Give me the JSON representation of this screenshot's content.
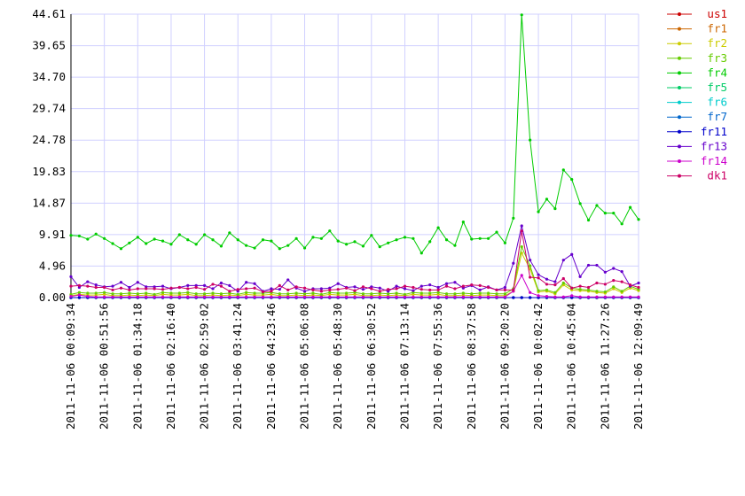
{
  "chart_data": {
    "type": "line",
    "categories": [
      "2011-11-06 00:09:34",
      null,
      null,
      null,
      "2011-11-06 00:51:56",
      null,
      null,
      null,
      "2011-11-06 01:34:18",
      null,
      null,
      null,
      "2011-11-06 02:16:40",
      null,
      null,
      null,
      "2011-11-06 02:59:02",
      null,
      null,
      null,
      "2011-11-06 03:41:24",
      null,
      null,
      null,
      "2011-11-06 04:23:46",
      null,
      null,
      null,
      "2011-11-06 05:06:08",
      null,
      null,
      null,
      "2011-11-06 05:48:30",
      null,
      null,
      null,
      "2011-11-06 06:30:52",
      null,
      null,
      null,
      "2011-11-06 07:13:14",
      null,
      null,
      null,
      "2011-11-06 07:55:36",
      null,
      null,
      null,
      "2011-11-06 08:37:58",
      null,
      null,
      null,
      "2011-11-06 09:20:20",
      null,
      null,
      null,
      "2011-11-06 10:02:42",
      null,
      null,
      null,
      "2011-11-06 10:45:04",
      null,
      null,
      null,
      "2011-11-06 11:27:26",
      null,
      null,
      null,
      "2011-11-06 12:09:49"
    ],
    "ylim": [
      0,
      44.61
    ],
    "yticks": [
      {
        "value": 0,
        "label": "0.00"
      },
      4.96,
      9.91,
      14.87,
      19.83,
      24.78,
      29.74,
      {
        "value": 34.7,
        "label": "34.70"
      },
      39.65,
      44.61
    ],
    "grid": true,
    "series": [
      {
        "name": "us1",
        "color": "#cc0000",
        "values": [
          0,
          0,
          0,
          0,
          0,
          0,
          0,
          0,
          0,
          0,
          0,
          0,
          0,
          0,
          0,
          0,
          0,
          0,
          0,
          0,
          0,
          0,
          0,
          0,
          0,
          0,
          0,
          0,
          0,
          0,
          0,
          0,
          0,
          0,
          0,
          0,
          0,
          0,
          0,
          0,
          0,
          0,
          0,
          0,
          0,
          0,
          0,
          0,
          0,
          0,
          0,
          0,
          0,
          0,
          0,
          0,
          0,
          0,
          0,
          0,
          0,
          0,
          0,
          0,
          0,
          0,
          0,
          0,
          0
        ]
      },
      {
        "name": "fr1",
        "color": "#cc6600",
        "values": [
          0,
          0,
          0,
          0,
          0,
          0,
          0,
          0,
          0,
          0,
          0,
          0,
          0,
          0,
          0,
          0,
          0,
          0,
          0,
          0,
          0,
          0,
          0,
          0,
          0,
          0,
          0,
          0,
          0,
          0,
          0,
          0,
          0,
          0,
          0,
          0,
          0,
          0,
          0,
          0,
          0,
          0,
          0,
          0,
          0,
          0,
          0,
          0,
          0,
          0,
          0,
          0,
          0,
          0,
          0,
          0,
          0,
          0,
          0,
          0,
          0,
          0,
          0,
          0,
          0,
          0,
          0,
          0,
          0
        ]
      },
      {
        "name": "fr2",
        "color": "#cccc00",
        "values": [
          0.3,
          0.5,
          0.4,
          0.4,
          0.5,
          0.3,
          0.3,
          0.4,
          0.3,
          0.4,
          0.3,
          0.5,
          0.4,
          0.4,
          0.5,
          0.3,
          0.3,
          0.4,
          0.3,
          0.4,
          0.3,
          0.5,
          0.4,
          0.4,
          0.5,
          0.3,
          0.3,
          0.4,
          0.3,
          0.4,
          0.3,
          0.5,
          0.4,
          0.4,
          0.5,
          0.3,
          0.3,
          0.4,
          0.3,
          0.4,
          0.3,
          0.5,
          0.4,
          0.4,
          0.5,
          0.3,
          0.3,
          0.4,
          0.3,
          0.4,
          0.4,
          0.3,
          0.3,
          1.0,
          7.0,
          4.5,
          0.9,
          1.0,
          0.6,
          2.0,
          1.2,
          1.1,
          1.0,
          0.8,
          0.7,
          1.4,
          0.8,
          1.5,
          1.1
        ]
      },
      {
        "name": "fr3",
        "color": "#66cc00",
        "values": [
          0.5,
          0.8,
          0.7,
          0.7,
          0.8,
          0.6,
          0.6,
          0.7,
          0.6,
          0.7,
          0.5,
          0.8,
          0.7,
          0.7,
          0.8,
          0.6,
          0.6,
          0.7,
          0.6,
          0.7,
          0.5,
          0.8,
          0.7,
          0.7,
          0.8,
          0.6,
          0.6,
          0.7,
          0.6,
          0.7,
          0.5,
          0.8,
          0.7,
          0.7,
          0.8,
          0.6,
          0.6,
          0.7,
          0.6,
          0.7,
          0.5,
          0.8,
          0.7,
          0.7,
          0.8,
          0.6,
          0.6,
          0.7,
          0.6,
          0.7,
          0.7,
          0.6,
          0.6,
          1.4,
          8.0,
          5.0,
          1.1,
          1.2,
          0.8,
          2.3,
          1.5,
          1.3,
          1.2,
          1.0,
          0.9,
          1.7,
          1.0,
          1.8,
          1.3
        ]
      },
      {
        "name": "fr4",
        "color": "#00cc00",
        "values": [
          9.8,
          9.7,
          9.2,
          10.0,
          9.3,
          8.5,
          7.7,
          8.6,
          9.5,
          8.5,
          9.2,
          8.9,
          8.4,
          9.9,
          9.1,
          8.4,
          9.9,
          9.1,
          8.1,
          10.2,
          9.1,
          8.2,
          7.8,
          9.1,
          8.9,
          7.7,
          8.2,
          9.3,
          7.8,
          9.5,
          9.3,
          10.5,
          8.9,
          8.4,
          8.8,
          8.1,
          9.8,
          8.0,
          8.6,
          9.1,
          9.5,
          9.3,
          7.0,
          8.8,
          11.0,
          9.1,
          8.2,
          11.9,
          9.2,
          9.3,
          9.3,
          10.3,
          8.6,
          12.5,
          44.5,
          24.8,
          13.5,
          15.5,
          14.0,
          20.1,
          18.6,
          14.8,
          12.2,
          14.5,
          13.3,
          13.3,
          11.6,
          14.2,
          12.3
        ]
      },
      {
        "name": "fr5",
        "color": "#00cc66",
        "values": [
          0,
          0,
          0,
          0,
          0,
          0,
          0,
          0,
          0,
          0,
          0,
          0,
          0,
          0,
          0,
          0,
          0,
          0,
          0,
          0,
          0,
          0,
          0,
          0,
          0,
          0,
          0,
          0,
          0,
          0,
          0,
          0,
          0,
          0,
          0,
          0,
          0,
          0,
          0,
          0,
          0,
          0,
          0,
          0,
          0,
          0,
          0,
          0,
          0,
          0,
          0,
          0,
          0,
          0,
          0,
          0,
          0,
          0,
          0,
          0,
          0,
          0,
          0,
          0,
          0,
          0,
          0,
          0,
          0
        ]
      },
      {
        "name": "fr6",
        "color": "#00cccc",
        "values": [
          0,
          0,
          0,
          0,
          0,
          0,
          0,
          0,
          0,
          0,
          0,
          0,
          0,
          0,
          0,
          0,
          0,
          0,
          0,
          0,
          0,
          0,
          0,
          0,
          0,
          0,
          0,
          0,
          0,
          0,
          0,
          0,
          0,
          0,
          0,
          0,
          0,
          0,
          0,
          0,
          0,
          0,
          0,
          0,
          0,
          0,
          0,
          0,
          0,
          0,
          0,
          0,
          0,
          0,
          0,
          0,
          0,
          0,
          0,
          0,
          0,
          0,
          0,
          0,
          0,
          0,
          0,
          0,
          0
        ]
      },
      {
        "name": "fr7",
        "color": "#0066cc",
        "values": [
          0,
          0,
          0,
          0,
          0,
          0,
          0,
          0,
          0,
          0,
          0,
          0,
          0,
          0,
          0,
          0,
          0,
          0,
          0,
          0,
          0,
          0,
          0,
          0,
          0,
          0,
          0,
          0,
          0,
          0,
          0,
          0,
          0,
          0,
          0,
          0,
          0,
          0,
          0,
          0,
          0,
          0,
          0,
          0,
          0,
          0,
          0,
          0,
          0,
          0,
          0,
          0,
          0,
          0,
          0,
          0,
          0,
          0,
          0,
          0,
          0,
          0,
          0,
          0,
          0,
          0,
          0,
          0,
          0
        ]
      },
      {
        "name": "fr11",
        "color": "#0000cc",
        "values": [
          0,
          0,
          0,
          0,
          0,
          0,
          0,
          0,
          0,
          0,
          0,
          0,
          0,
          0,
          0,
          0,
          0,
          0,
          0,
          0,
          0,
          0,
          0,
          0,
          0,
          0,
          0,
          0,
          0,
          0,
          0,
          0,
          0,
          0,
          0,
          0,
          0,
          0,
          0,
          0,
          0,
          0,
          0,
          0,
          0,
          0,
          0,
          0,
          0,
          0,
          0,
          0,
          0,
          0,
          0,
          0,
          0,
          0,
          0,
          0,
          0,
          0,
          0,
          0,
          0,
          0,
          0,
          0,
          0
        ]
      },
      {
        "name": "fr13",
        "color": "#6600cc",
        "values": [
          3.3,
          1.6,
          2.5,
          2.0,
          1.7,
          1.8,
          2.4,
          1.6,
          2.4,
          1.7,
          1.7,
          1.8,
          1.4,
          1.6,
          1.9,
          1.9,
          1.9,
          1.4,
          2.3,
          1.9,
          1.0,
          2.4,
          2.2,
          1.0,
          1.4,
          1.3,
          2.8,
          1.5,
          1.0,
          1.4,
          1.4,
          1.5,
          2.2,
          1.6,
          1.7,
          1.3,
          1.7,
          1.5,
          1.0,
          1.8,
          1.4,
          1.1,
          1.8,
          2.0,
          1.6,
          2.2,
          2.4,
          1.5,
          1.9,
          1.2,
          1.7,
          1.2,
          1.6,
          5.4,
          11.3,
          5.9,
          3.6,
          2.9,
          2.5,
          5.9,
          6.8,
          3.3,
          5.1,
          5.1,
          4.0,
          4.6,
          4.1,
          1.8,
          2.3
        ]
      },
      {
        "name": "fr14",
        "color": "#cc00cc",
        "values": [
          0.2,
          0.4,
          0.2,
          0.1,
          0.1,
          0.1,
          0.1,
          0.1,
          0.1,
          0.1,
          0.1,
          0.1,
          0.1,
          0.1,
          0.1,
          0.1,
          0.1,
          0.1,
          0.1,
          0.1,
          0.1,
          0.1,
          0.1,
          0.1,
          0.1,
          0.1,
          0.1,
          0.1,
          0.1,
          0.1,
          0.1,
          0.1,
          0.1,
          0.1,
          0.1,
          0.1,
          0.1,
          0.1,
          0.1,
          0.1,
          0.1,
          0.1,
          0.1,
          0.1,
          0.1,
          0.1,
          0.1,
          0.1,
          0.1,
          0.1,
          0.1,
          0.1,
          0.1,
          1.0,
          3.5,
          0.8,
          0.3,
          0.2,
          0.1,
          0.1,
          0.3,
          0.1,
          0.1,
          0.1,
          0.1,
          0.1,
          0.1,
          0.1,
          0.1
        ]
      },
      {
        "name": "dk1",
        "color": "#cc0066",
        "values": [
          1.8,
          1.9,
          1.8,
          1.6,
          1.6,
          1.2,
          1.5,
          1.2,
          1.4,
          1.4,
          1.4,
          1.3,
          1.5,
          1.6,
          1.4,
          1.6,
          1.3,
          2.1,
          1.8,
          1.0,
          1.3,
          1.4,
          1.5,
          0.9,
          1.0,
          1.9,
          1.2,
          1.7,
          1.5,
          1.2,
          1.0,
          1.2,
          1.3,
          1.5,
          1.1,
          1.7,
          1.4,
          1.0,
          1.3,
          1.4,
          1.8,
          1.6,
          1.3,
          1.2,
          1.2,
          1.8,
          1.4,
          1.8,
          2.0,
          1.9,
          1.6,
          1.2,
          1.2,
          1.2,
          10.5,
          3.2,
          3.1,
          2.1,
          2.0,
          3.0,
          1.5,
          1.8,
          1.6,
          2.3,
          2.1,
          2.7,
          2.5,
          2.0,
          1.6
        ]
      }
    ]
  }
}
